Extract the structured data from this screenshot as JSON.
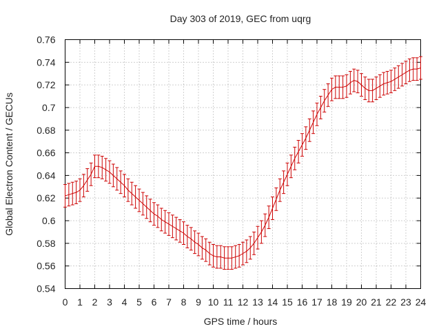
{
  "chart_data": {
    "type": "line",
    "title": "Day 303 of 2019, GEC from uqrg",
    "xlabel": "GPS time / hours",
    "ylabel": "Global Electron Content / GECUs",
    "xlim": [
      0,
      24
    ],
    "ylim": [
      0.54,
      0.76
    ],
    "grid": true,
    "error_bars": true,
    "series_color": "#cc0000",
    "x_ticks": [
      "0",
      "1",
      "2",
      "3",
      "4",
      "5",
      "6",
      "7",
      "8",
      "9",
      "10",
      "11",
      "12",
      "13",
      "14",
      "15",
      "16",
      "17",
      "18",
      "19",
      "20",
      "21",
      "22",
      "23",
      "24"
    ],
    "y_ticks": [
      "0.54",
      "0.56",
      "0.58",
      "0.6",
      "0.62",
      "0.64",
      "0.66",
      "0.68",
      "0.7",
      "0.72",
      "0.74",
      "0.76"
    ],
    "x": [
      0,
      0.25,
      0.5,
      0.75,
      1,
      1.25,
      1.5,
      1.75,
      2,
      2.25,
      2.5,
      2.75,
      3,
      3.25,
      3.5,
      3.75,
      4,
      4.25,
      4.5,
      4.75,
      5,
      5.25,
      5.5,
      5.75,
      6,
      6.25,
      6.5,
      6.75,
      7,
      7.25,
      7.5,
      7.75,
      8,
      8.25,
      8.5,
      8.75,
      9,
      9.25,
      9.5,
      9.75,
      10,
      10.25,
      10.5,
      10.75,
      11,
      11.25,
      11.5,
      11.75,
      12,
      12.25,
      12.5,
      12.75,
      13,
      13.25,
      13.5,
      13.75,
      14,
      14.25,
      14.5,
      14.75,
      15,
      15.25,
      15.5,
      15.75,
      16,
      16.25,
      16.5,
      16.75,
      17,
      17.25,
      17.5,
      17.75,
      18,
      18.25,
      18.5,
      18.75,
      19,
      19.25,
      19.5,
      19.75,
      20,
      20.25,
      20.5,
      20.75,
      21,
      21.25,
      21.5,
      21.75,
      22,
      22.25,
      22.5,
      22.75,
      23,
      23.25,
      23.5,
      23.75,
      24
    ],
    "values": [
      0.622,
      0.623,
      0.624,
      0.625,
      0.627,
      0.631,
      0.636,
      0.641,
      0.648,
      0.648,
      0.647,
      0.645,
      0.643,
      0.64,
      0.637,
      0.634,
      0.631,
      0.627,
      0.624,
      0.621,
      0.618,
      0.615,
      0.612,
      0.609,
      0.606,
      0.604,
      0.601,
      0.599,
      0.597,
      0.595,
      0.593,
      0.591,
      0.589,
      0.586,
      0.584,
      0.581,
      0.579,
      0.576,
      0.574,
      0.571,
      0.569,
      0.568,
      0.568,
      0.567,
      0.567,
      0.567,
      0.568,
      0.569,
      0.571,
      0.573,
      0.576,
      0.58,
      0.585,
      0.59,
      0.596,
      0.603,
      0.611,
      0.619,
      0.627,
      0.634,
      0.641,
      0.648,
      0.655,
      0.661,
      0.667,
      0.673,
      0.68,
      0.687,
      0.694,
      0.7,
      0.706,
      0.711,
      0.716,
      0.718,
      0.718,
      0.718,
      0.719,
      0.722,
      0.724,
      0.723,
      0.72,
      0.717,
      0.715,
      0.715,
      0.717,
      0.719,
      0.721,
      0.722,
      0.723,
      0.725,
      0.727,
      0.729,
      0.731,
      0.733,
      0.734,
      0.734,
      0.735
    ],
    "error": 0.01
  }
}
